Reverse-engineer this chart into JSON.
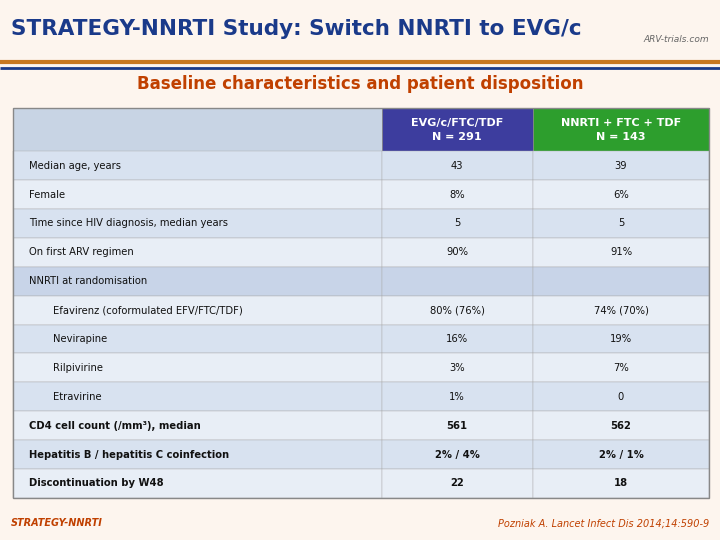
{
  "title": "STRATEGY-NNRTI Study: Switch NNRTI to EVG/c",
  "subtitle": "Baseline characteristics and patient disposition",
  "bg_color": "#fdf5ee",
  "title_color": "#1a3a8a",
  "subtitle_color": "#c04000",
  "col1_header": "EVG/c/FTC/TDF\nN = 291",
  "col2_header": "NNRTI + FTC + TDF\nN = 143",
  "col1_header_bg": "#3d3d9e",
  "col2_header_bg": "#2d9e2d",
  "header_text_color": "#ffffff",
  "rows": [
    {
      "label": "Median age, years",
      "val1": "43",
      "val2": "39",
      "indent": false,
      "bold": false,
      "section": false
    },
    {
      "label": "Female",
      "val1": "8%",
      "val2": "6%",
      "indent": false,
      "bold": false,
      "section": false
    },
    {
      "label": "Time since HIV diagnosis, median years",
      "val1": "5",
      "val2": "5",
      "indent": false,
      "bold": false,
      "section": false
    },
    {
      "label": "On first ARV regimen",
      "val1": "90%",
      "val2": "91%",
      "indent": false,
      "bold": false,
      "section": false
    },
    {
      "label": "NNRTI at randomisation",
      "val1": "",
      "val2": "",
      "indent": false,
      "bold": false,
      "section": true
    },
    {
      "label": "Efavirenz (coformulated EFV/FTC/TDF)",
      "val1": "80% (76%)",
      "val2": "74% (70%)",
      "indent": true,
      "bold": false,
      "section": false
    },
    {
      "label": "Nevirapine",
      "val1": "16%",
      "val2": "19%",
      "indent": true,
      "bold": false,
      "section": false
    },
    {
      "label": "Rilpivirine",
      "val1": "3%",
      "val2": "7%",
      "indent": true,
      "bold": false,
      "section": false
    },
    {
      "label": "Etravirine",
      "val1": "1%",
      "val2": "0",
      "indent": true,
      "bold": false,
      "section": false
    },
    {
      "label": "CD4 cell count (/mm³), median",
      "val1": "561",
      "val2": "562",
      "indent": false,
      "bold": true,
      "section": false
    },
    {
      "label": "Hepatitis B / hepatitis C coinfection",
      "val1": "2% / 4%",
      "val2": "2% / 1%",
      "indent": false,
      "bold": true,
      "section": false
    },
    {
      "label": "Discontinuation by W48",
      "val1": "22",
      "val2": "18",
      "indent": false,
      "bold": true,
      "section": false
    }
  ],
  "row_colors": [
    "#d8e2f0",
    "#e8eef6",
    "#d8e2f0",
    "#e8eef6",
    "#c8d4e8",
    "#e8eef6",
    "#d8e2f0",
    "#e8eef6",
    "#d8e2f0",
    "#e8eef6",
    "#d8e2f0",
    "#e8eef6"
  ],
  "footer_left": "STRATEGY-NNRTI",
  "footer_right": "Pozniak A. Lancet Infect Dis 2014;14:590-9",
  "footer_left_color": "#c04000",
  "footer_right_color": "#c04000",
  "orange_line_color": "#c87820",
  "blue_line_color": "#1a3a8a",
  "table_border_color": "#888888",
  "label_col_header_bg": "#c8d4e4"
}
